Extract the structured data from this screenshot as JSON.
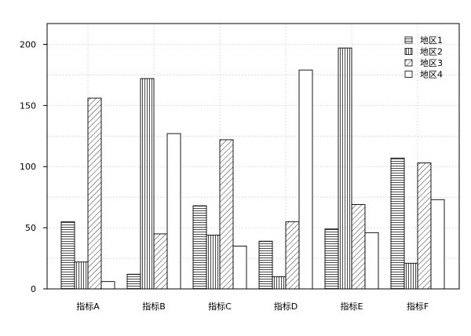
{
  "chart_data": {
    "type": "bar",
    "title": "",
    "xlabel": "",
    "ylabel": "",
    "categories": [
      "指标A",
      "指标B",
      "指标C",
      "指标D",
      "指标E",
      "指标F"
    ],
    "series": [
      {
        "name": "地区1",
        "pattern": "horizontal",
        "values": [
          55,
          12,
          68,
          39,
          49,
          107
        ]
      },
      {
        "name": "地区2",
        "pattern": "vertical",
        "values": [
          22,
          172,
          44,
          10,
          197,
          21
        ]
      },
      {
        "name": "地区3",
        "pattern": "diagonal",
        "values": [
          156,
          45,
          122,
          55,
          69,
          103
        ]
      },
      {
        "name": "地区4",
        "pattern": "none",
        "values": [
          6,
          127,
          35,
          179,
          46,
          73
        ]
      }
    ],
    "ylim": [
      0,
      217
    ],
    "yticks": [
      0,
      50,
      100,
      150,
      200
    ],
    "ytick_labels": [
      "0",
      "50",
      "100",
      "150",
      "200"
    ],
    "grid": true,
    "legend_position": "top-right",
    "colors": {
      "stroke": "#000000",
      "grid": "#c8c8c8",
      "background": "#ffffff"
    }
  }
}
